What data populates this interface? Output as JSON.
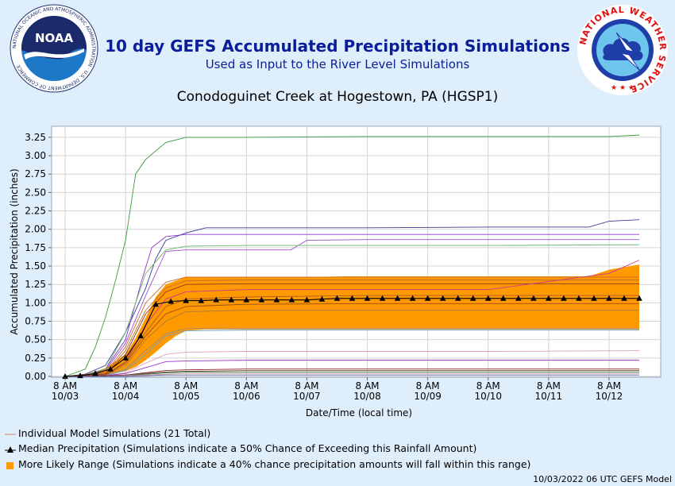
{
  "header": {
    "title": "10 day GEFS Accumulated Precipitation Simulations",
    "subtitle": "Used as Input to the River Level Simulations",
    "station": "Conodoguinet Creek at Hogestown, PA (HGSP1)",
    "noaa_logo": {
      "center_text": "NOAA",
      "ring_text": "NATIONAL OCEANIC AND ATMOSPHERIC ADMINISTRATION · U.S. DEPARTMENT OF COMMERCE"
    },
    "nws_logo": {
      "ring_text": "NATIONAL WEATHER SERVICE"
    }
  },
  "chart_data": {
    "type": "line",
    "ylabel": "Accumulated Precipitation (inches)",
    "xlabel": "Date/Time (local time)",
    "ylim": [
      0,
      3.4
    ],
    "xlim": [
      0,
      29
    ],
    "grid": true,
    "x_time_labels": [
      "8 AM",
      "8 AM",
      "8 AM",
      "8 AM",
      "8 AM",
      "8 AM",
      "8 AM",
      "8 AM",
      "8 AM",
      "8 AM"
    ],
    "x_date_labels": [
      "10/03",
      "10/04",
      "10/05",
      "10/06",
      "10/07",
      "10/08",
      "10/09",
      "10/10",
      "10/11",
      "10/12"
    ],
    "x_ticks": [
      0,
      3,
      6,
      9,
      12,
      15,
      18,
      21,
      24,
      27
    ],
    "y_ticks": [
      0,
      0.25,
      0.5,
      0.75,
      1.0,
      1.25,
      1.5,
      1.75,
      2.0,
      2.25,
      2.5,
      2.75,
      3.0,
      3.25
    ],
    "y_tick_labels": [
      "0.00",
      "0.25",
      "0.50",
      "0.75",
      "1.00",
      "1.25",
      "1.50",
      "1.75",
      "2.00",
      "2.25",
      "2.50",
      "2.75",
      "3.00",
      "3.25"
    ],
    "range_band": {
      "name": "More Likely Range",
      "color": "#ff9900",
      "x": [
        0,
        1,
        2,
        3,
        3.5,
        4,
        4.5,
        5,
        5.5,
        6,
        7,
        8,
        9,
        10,
        11,
        12,
        14,
        17,
        20,
        23,
        25,
        26,
        27,
        28.5
      ],
      "lower": [
        0,
        0.01,
        0.03,
        0.07,
        0.13,
        0.22,
        0.33,
        0.45,
        0.55,
        0.62,
        0.64,
        0.64,
        0.64,
        0.64,
        0.64,
        0.64,
        0.64,
        0.64,
        0.64,
        0.64,
        0.64,
        0.64,
        0.64,
        0.64
      ],
      "upper": [
        0,
        0.03,
        0.11,
        0.3,
        0.52,
        0.8,
        1.08,
        1.25,
        1.3,
        1.35,
        1.35,
        1.35,
        1.35,
        1.35,
        1.35,
        1.35,
        1.36,
        1.36,
        1.36,
        1.36,
        1.36,
        1.36,
        1.45,
        1.52
      ]
    },
    "median": {
      "name": "Median Precipitation",
      "x": [
        0,
        0.75,
        1.5,
        2.25,
        3,
        3.75,
        4.5,
        5.25,
        6,
        6.75,
        7.5,
        8.25,
        9,
        9.75,
        10.5,
        11.25,
        12,
        12.75,
        13.5,
        14.25,
        15,
        15.75,
        16.5,
        17.25,
        18,
        18.75,
        19.5,
        20.25,
        21,
        21.75,
        22.5,
        23.25,
        24,
        24.75,
        25.5,
        26.25,
        27,
        27.75,
        28.5
      ],
      "y": [
        0,
        0.01,
        0.04,
        0.1,
        0.25,
        0.55,
        0.98,
        1.02,
        1.03,
        1.03,
        1.04,
        1.04,
        1.04,
        1.04,
        1.04,
        1.04,
        1.04,
        1.05,
        1.06,
        1.06,
        1.06,
        1.06,
        1.06,
        1.06,
        1.06,
        1.06,
        1.06,
        1.06,
        1.06,
        1.06,
        1.06,
        1.06,
        1.06,
        1.06,
        1.06,
        1.06,
        1.06,
        1.06,
        1.06
      ]
    },
    "members_count": 21,
    "members": [
      {
        "color": "#3a9a3a",
        "x": [
          0,
          1,
          1.5,
          2,
          2.5,
          3,
          3.5,
          4,
          5,
          6,
          9,
          15,
          21,
          27,
          28.5
        ],
        "y": [
          0,
          0.1,
          0.4,
          0.8,
          1.3,
          1.85,
          2.75,
          2.95,
          3.18,
          3.25,
          3.25,
          3.26,
          3.26,
          3.26,
          3.28
        ]
      },
      {
        "color": "#3a3a9a",
        "x": [
          0,
          1,
          2,
          3,
          4,
          4.5,
          5,
          6,
          7,
          9,
          15,
          21,
          26,
          27,
          28.5
        ],
        "y": [
          0,
          0.03,
          0.15,
          0.6,
          1.2,
          1.6,
          1.85,
          1.95,
          2.02,
          2.02,
          2.02,
          2.03,
          2.03,
          2.11,
          2.13
        ]
      },
      {
        "color": "#8c3acc",
        "x": [
          0,
          1,
          2,
          3,
          3.8,
          4.3,
          5,
          6,
          9,
          12,
          21,
          28.5
        ],
        "y": [
          0,
          0.02,
          0.1,
          0.5,
          1.3,
          1.75,
          1.9,
          1.93,
          1.93,
          1.93,
          1.93,
          1.93
        ]
      },
      {
        "color": "#9b4fd0",
        "x": [
          0,
          1,
          2,
          3,
          4,
          4.5,
          5,
          6,
          9,
          11.2,
          12,
          15,
          21,
          28.5
        ],
        "y": [
          0,
          0.02,
          0.08,
          0.45,
          1.1,
          1.4,
          1.7,
          1.72,
          1.72,
          1.72,
          1.85,
          1.86,
          1.86,
          1.86
        ]
      },
      {
        "color": "#6ab56a",
        "x": [
          0,
          1,
          2,
          3,
          4,
          5,
          6,
          9,
          15,
          21,
          28.5
        ],
        "y": [
          0,
          0.02,
          0.1,
          0.6,
          1.4,
          1.72,
          1.77,
          1.78,
          1.78,
          1.78,
          1.79
        ]
      },
      {
        "color": "#c96a2a",
        "x": [
          0,
          2,
          3,
          4,
          5,
          6,
          9,
          15,
          21,
          28.5
        ],
        "y": [
          0,
          0.05,
          0.4,
          1.0,
          1.28,
          1.35,
          1.35,
          1.35,
          1.35,
          1.35
        ]
      },
      {
        "color": "#c07030",
        "x": [
          0,
          2,
          3,
          4,
          5,
          6,
          9,
          15,
          21,
          28.5
        ],
        "y": [
          0,
          0.04,
          0.35,
          0.9,
          1.2,
          1.3,
          1.31,
          1.31,
          1.31,
          1.31
        ]
      },
      {
        "color": "#8a3a1a",
        "x": [
          0,
          2,
          3,
          4,
          5,
          6,
          9,
          15,
          21,
          28.5
        ],
        "y": [
          0,
          0.03,
          0.3,
          0.85,
          1.15,
          1.25,
          1.26,
          1.26,
          1.26,
          1.26
        ]
      },
      {
        "color": "#cc3a8a",
        "x": [
          0,
          2,
          3,
          4,
          5,
          6,
          9,
          15,
          21,
          27,
          28.5
        ],
        "y": [
          0,
          0.02,
          0.2,
          0.7,
          1.05,
          1.15,
          1.18,
          1.18,
          1.18,
          1.4,
          1.58
        ]
      },
      {
        "color": "#b05a2a",
        "x": [
          0,
          2,
          3,
          4,
          5,
          6,
          9,
          15,
          21,
          28.5
        ],
        "y": [
          0,
          0.02,
          0.2,
          0.6,
          0.95,
          1.05,
          1.08,
          1.1,
          1.1,
          1.1
        ]
      },
      {
        "color": "#a04a1a",
        "x": [
          0,
          2,
          3,
          4,
          5,
          6,
          9,
          15,
          21,
          28.5
        ],
        "y": [
          0,
          0.02,
          0.18,
          0.55,
          0.85,
          0.95,
          0.98,
          0.99,
          0.99,
          0.99
        ]
      },
      {
        "color": "#b07a3a",
        "x": [
          0,
          2,
          3,
          4,
          5,
          6,
          9,
          15,
          21,
          28.5
        ],
        "y": [
          0,
          0.01,
          0.15,
          0.5,
          0.75,
          0.88,
          0.9,
          0.9,
          0.9,
          0.9
        ]
      },
      {
        "color": "#9a8a7a",
        "x": [
          0,
          2,
          3,
          4,
          5,
          6,
          9,
          15,
          21,
          28.5
        ],
        "y": [
          0,
          0.01,
          0.1,
          0.35,
          0.58,
          0.65,
          0.65,
          0.65,
          0.65,
          0.65
        ]
      },
      {
        "color": "#6aa0c0",
        "x": [
          0,
          2,
          3,
          4,
          5,
          6,
          9,
          15,
          21,
          28.5
        ],
        "y": [
          0,
          0.01,
          0.08,
          0.3,
          0.55,
          0.62,
          0.63,
          0.63,
          0.63,
          0.63
        ]
      },
      {
        "color": "#e0a0b0",
        "x": [
          0,
          2,
          3,
          4,
          5,
          6,
          9,
          15,
          21,
          28.5
        ],
        "y": [
          0,
          0.01,
          0.05,
          0.18,
          0.3,
          0.33,
          0.34,
          0.34,
          0.34,
          0.35
        ]
      },
      {
        "color": "#9a3acc",
        "x": [
          0,
          2,
          3,
          4,
          5,
          6,
          9,
          15,
          21,
          28.5
        ],
        "y": [
          0,
          0.01,
          0.04,
          0.12,
          0.2,
          0.21,
          0.22,
          0.22,
          0.22,
          0.22
        ]
      },
      {
        "color": "#8a2a2a",
        "x": [
          0,
          2,
          3,
          4,
          5,
          6,
          9,
          15,
          21,
          28.5
        ],
        "y": [
          0,
          0.01,
          0.02,
          0.05,
          0.08,
          0.09,
          0.1,
          0.1,
          0.1,
          0.1
        ]
      },
      {
        "color": "#6a4a3a",
        "x": [
          0,
          2,
          3,
          4,
          5,
          6,
          9,
          15,
          21,
          28.5
        ],
        "y": [
          0,
          0,
          0.02,
          0.04,
          0.06,
          0.07,
          0.08,
          0.08,
          0.08,
          0.08
        ]
      },
      {
        "color": "#3a6a3a",
        "x": [
          0,
          2,
          3,
          4,
          5,
          6,
          9,
          15,
          21,
          28.5
        ],
        "y": [
          0,
          0,
          0.01,
          0.03,
          0.05,
          0.06,
          0.06,
          0.06,
          0.06,
          0.06
        ]
      },
      {
        "color": "#c0a0a0",
        "x": [
          0,
          2,
          3,
          4,
          5,
          6,
          9,
          15,
          21,
          28.5
        ],
        "y": [
          0,
          0,
          0.01,
          0.02,
          0.03,
          0.04,
          0.04,
          0.04,
          0.04,
          0.04
        ]
      },
      {
        "color": "#5a5aaa",
        "x": [
          0,
          2,
          3,
          4,
          5,
          6,
          9,
          15,
          21,
          28.5
        ],
        "y": [
          0,
          0,
          0,
          0.01,
          0.02,
          0.02,
          0.02,
          0.02,
          0.02,
          0.02
        ]
      }
    ]
  },
  "legend": {
    "members_label": "Individual Model Simulations (21 Total)",
    "median_label": "Median Precipitation (Simulations indicate a 50% Chance of Exceeding this Rainfall Amount)",
    "range_label": "More Likely Range (Simulations indicate a 40% chance precipitation amounts will fall within this range)"
  },
  "footer": "10/03/2022 06 UTC GEFS Model",
  "colors": {
    "title": "#0a1e9a",
    "band": "#ff9900",
    "background": "#dfeefb"
  }
}
